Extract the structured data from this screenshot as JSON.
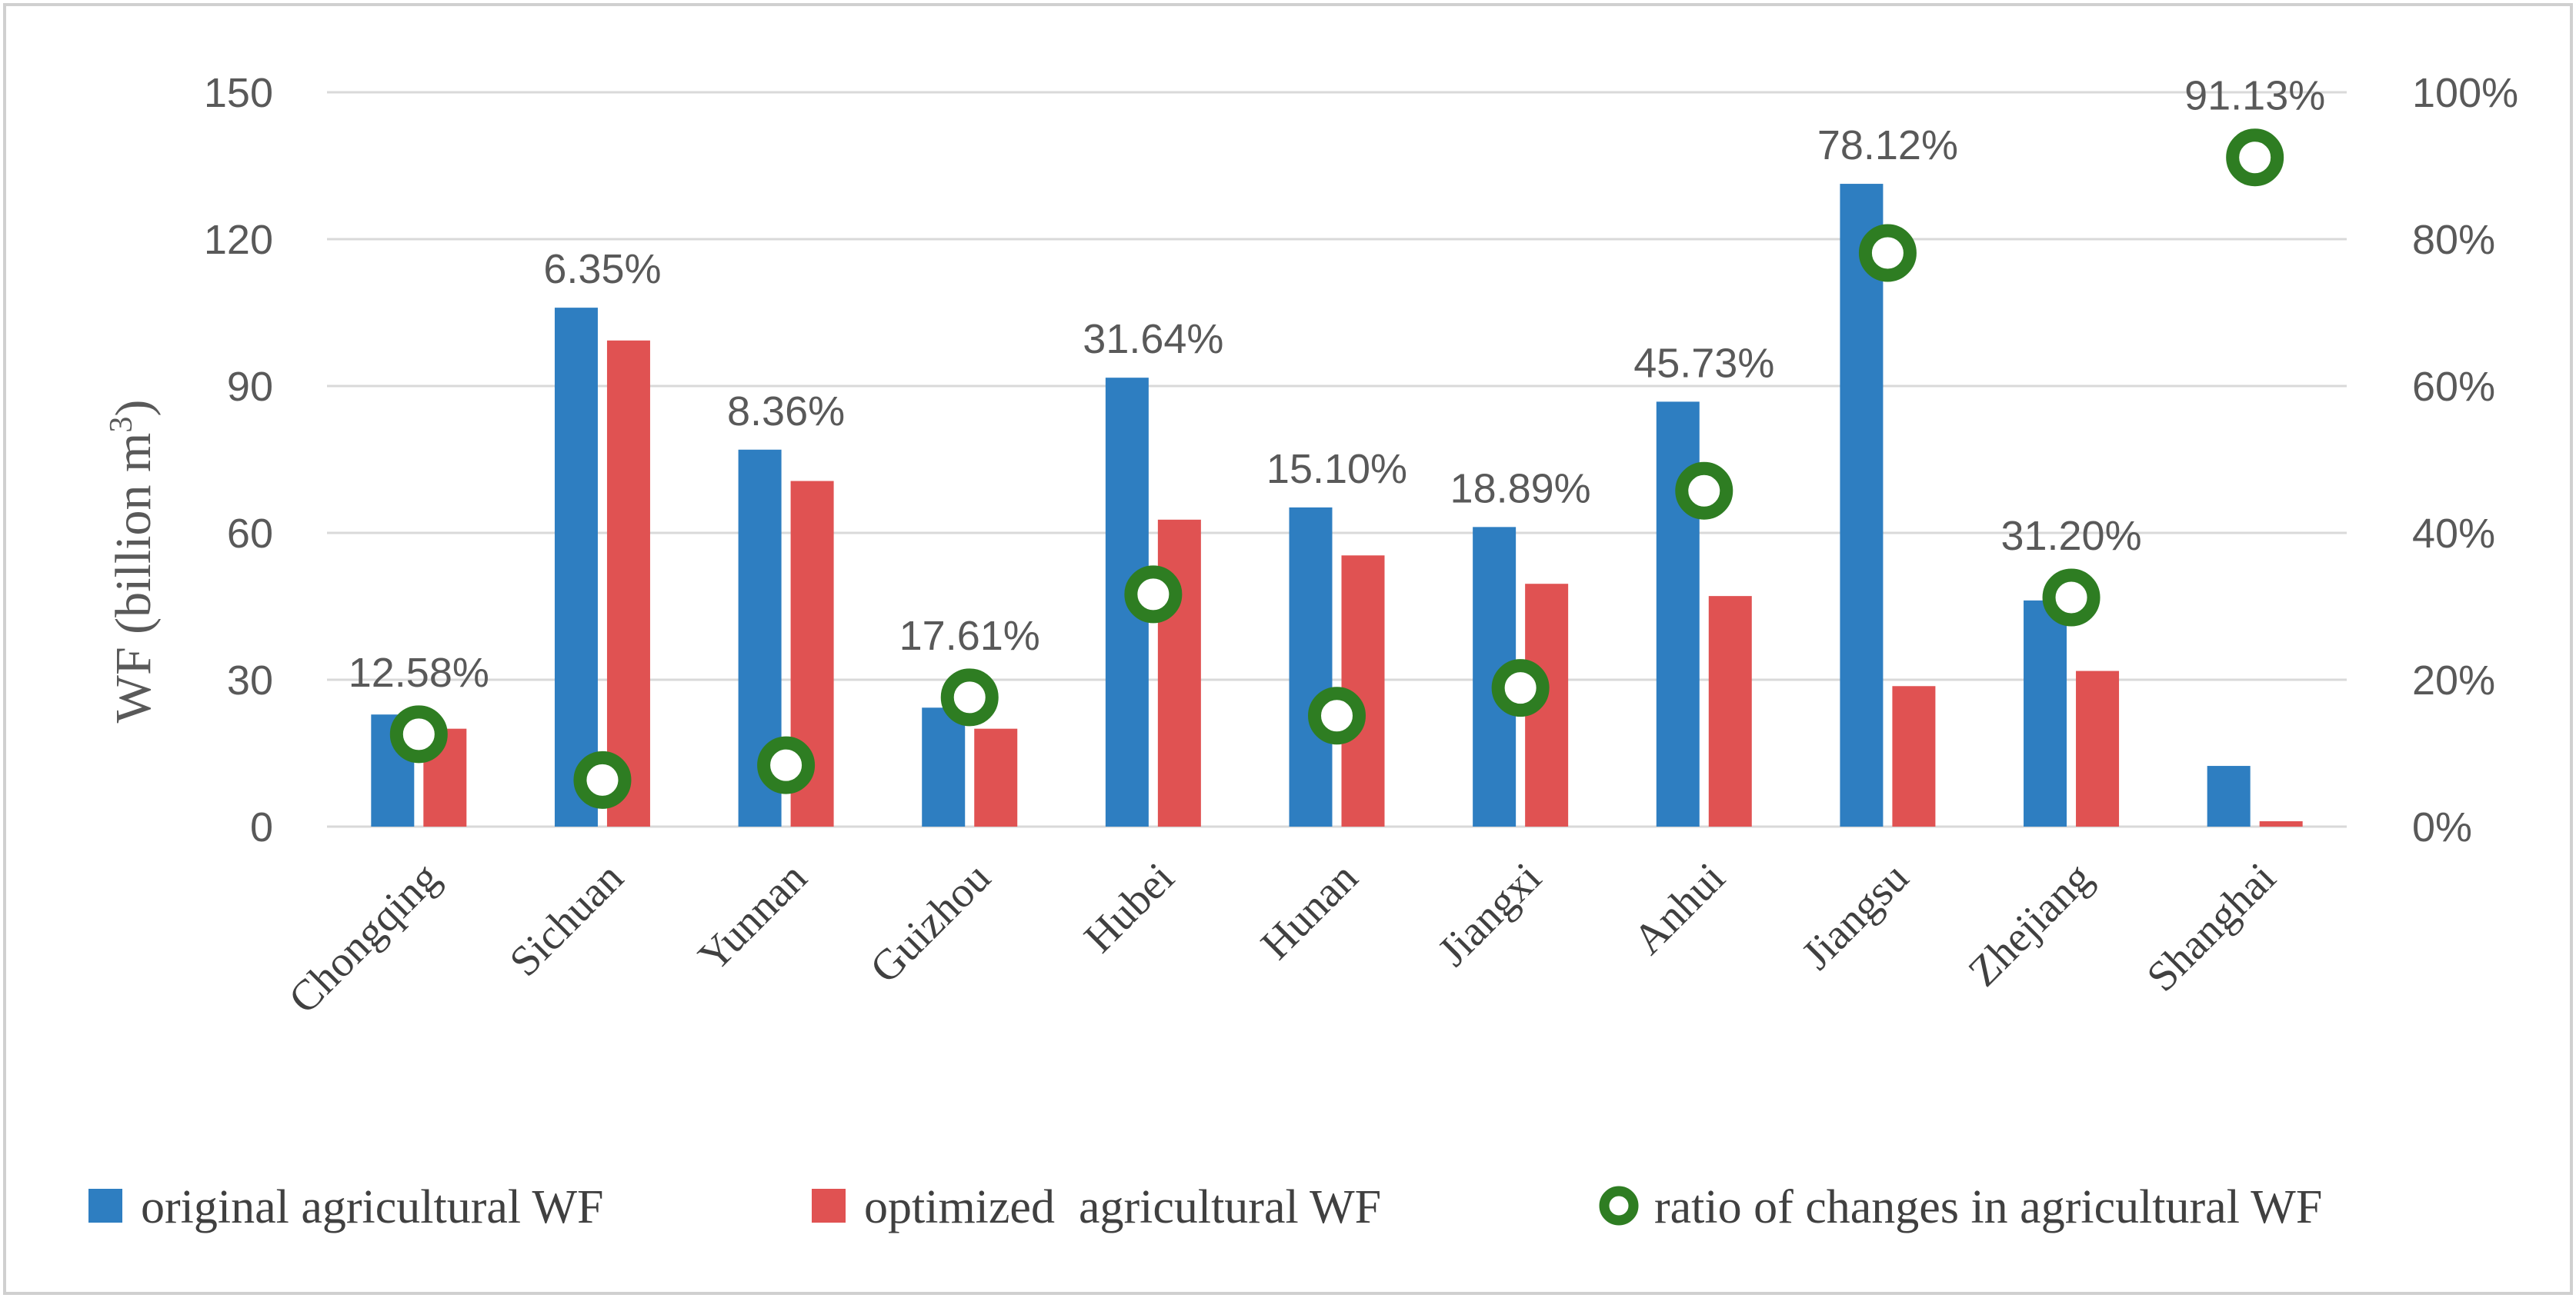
{
  "chart_data": {
    "type": "bar",
    "title": "",
    "xlabel": "",
    "ylabel": "WF (billion m",
    "ylabel_sup": "3",
    "ylabel_close": ")",
    "ylim": [
      0,
      150
    ],
    "y_ticks": [
      0,
      30,
      60,
      90,
      120,
      150
    ],
    "y2lim": [
      0,
      100
    ],
    "y2_ticks": [
      "0%",
      "20%",
      "40%",
      "60%",
      "80%",
      "100%"
    ],
    "grid": true,
    "legend_position": "bottom",
    "categories": [
      "Chongqing",
      "Sichuan",
      "Yunnan",
      "Guizhou",
      "Hubei",
      "Hunan",
      "Jiangxi",
      "Anhui",
      "Jiangsu",
      "Zhejiang",
      "Shanghai"
    ],
    "series": [
      {
        "name": "original agricultural WF",
        "kind": "bar",
        "axis": "left",
        "color": "#2e7ec1",
        "values": [
          22.9,
          106.0,
          77.0,
          24.3,
          91.7,
          65.2,
          61.2,
          86.8,
          131.3,
          46.2,
          12.4
        ]
      },
      {
        "name": "optimized  agricultural WF",
        "kind": "bar",
        "axis": "left",
        "color": "#e05252",
        "values": [
          20.0,
          99.3,
          70.6,
          20.0,
          62.7,
          55.4,
          49.6,
          47.1,
          28.7,
          31.8,
          1.1
        ]
      },
      {
        "name": "ratio of changes in agricultural WF",
        "kind": "marker",
        "axis": "right",
        "color": "#2e7d22",
        "values": [
          12.58,
          6.35,
          8.36,
          17.61,
          31.64,
          15.1,
          18.89,
          45.73,
          78.12,
          31.2,
          91.13
        ],
        "labels": [
          "12.58%",
          "6.35%",
          "8.36%",
          "17.61%",
          "31.64%",
          "15.10%",
          "18.89%",
          "45.73%",
          "78.12%",
          "31.20%",
          "91.13%"
        ]
      }
    ]
  }
}
